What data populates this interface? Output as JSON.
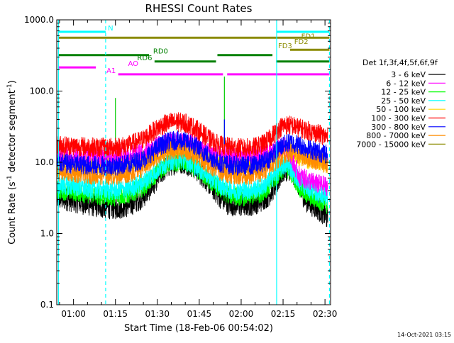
{
  "chart_data": {
    "type": "line",
    "title": "RHESSI Count Rates",
    "xlabel": "Start Time (18-Feb-06 00:54:02)",
    "ylabel_main": "Count Rate (s",
    "ylabel_sup1": "-1",
    "ylabel_mid": " detector segment",
    "ylabel_sup2": "-1",
    "ylabel_end": ")",
    "y_scale": "log",
    "ylim": [
      0.1,
      1000
    ],
    "xlim_minutes": [
      54,
      152
    ],
    "x_ticks": [
      {
        "minute": 60,
        "label": "01:00"
      },
      {
        "minute": 75,
        "label": "01:15"
      },
      {
        "minute": 90,
        "label": "01:30"
      },
      {
        "minute": 105,
        "label": "01:45"
      },
      {
        "minute": 120,
        "label": "02:00"
      },
      {
        "minute": 135,
        "label": "02:15"
      },
      {
        "minute": 150,
        "label": "02:30"
      }
    ],
    "y_ticks": [
      {
        "value": 0.1,
        "label": "0.1"
      },
      {
        "value": 1,
        "label": "1.0"
      },
      {
        "value": 10,
        "label": "10.0"
      },
      {
        "value": 100,
        "label": "100.0"
      },
      {
        "value": 1000,
        "label": "1000.0"
      }
    ],
    "legend_title": "Det 1f,3f,4f,5f,6f,9f",
    "series": [
      {
        "name": "3 - 6 keV",
        "color": "#000000",
        "x": [
          54,
          60,
          65,
          70,
          75,
          80,
          85,
          88,
          91,
          94,
          97,
          100,
          103,
          106,
          109,
          112,
          115,
          118,
          121,
          124,
          127,
          130,
          133,
          135,
          137,
          139,
          141,
          143,
          145,
          147,
          149,
          151
        ],
        "y": [
          3.2,
          2.9,
          2.6,
          2.4,
          2.3,
          2.5,
          3.3,
          4.6,
          6.8,
          9.0,
          10.2,
          10.0,
          8.6,
          6.6,
          4.8,
          3.4,
          2.7,
          2.5,
          2.5,
          2.6,
          2.9,
          3.5,
          5.2,
          7.6,
          8.2,
          6.8,
          4.2,
          3.0,
          2.6,
          2.3,
          2.0,
          1.6
        ]
      },
      {
        "name": "6 - 12 keV",
        "color": "#ff00ff",
        "x": [
          54,
          60,
          65,
          70,
          75,
          80,
          85,
          88,
          91,
          94,
          97,
          100,
          103,
          106,
          109,
          112,
          115,
          118,
          121,
          124,
          127,
          130,
          133,
          135,
          137,
          139,
          141,
          143,
          145,
          147,
          149,
          151
        ],
        "y": [
          13.0,
          12.7,
          12.4,
          12.2,
          12.2,
          12.6,
          13.7,
          15.2,
          17.6,
          19.3,
          19.8,
          19.5,
          18.0,
          15.8,
          13.8,
          12.6,
          12.2,
          12.0,
          12.0,
          12.0,
          12.3,
          13.2,
          15.2,
          17.0,
          15.0,
          9.0,
          6.3,
          5.8,
          5.4,
          5.0,
          4.8,
          4.6
        ]
      },
      {
        "name": "12 - 25 keV",
        "color": "#00ff00",
        "x": [
          54,
          60,
          65,
          70,
          75,
          80,
          85,
          88,
          91,
          94,
          97,
          100,
          103,
          106,
          109,
          112,
          115,
          118,
          121,
          124,
          127,
          130,
          133,
          135,
          137,
          139,
          141,
          143,
          145,
          147,
          149,
          151
        ],
        "y": [
          4.1,
          3.9,
          3.6,
          3.4,
          3.3,
          3.6,
          4.5,
          5.9,
          7.8,
          9.7,
          10.2,
          9.8,
          8.5,
          7.0,
          5.4,
          4.3,
          3.6,
          3.4,
          3.3,
          3.4,
          3.7,
          4.6,
          6.5,
          8.2,
          8.0,
          6.0,
          4.4,
          3.6,
          3.3,
          3.0,
          2.8,
          2.5
        ]
      },
      {
        "name": "25 - 50 keV",
        "color": "#00ffff",
        "x": [
          54,
          60,
          65,
          70,
          75,
          80,
          85,
          88,
          91,
          94,
          97,
          100,
          103,
          106,
          109,
          112,
          115,
          118,
          121,
          124,
          127,
          130,
          133,
          135,
          137,
          139,
          141,
          143,
          145,
          147,
          149,
          151
        ],
        "y": [
          4.8,
          4.6,
          4.3,
          4.1,
          4.0,
          4.3,
          5.2,
          6.6,
          8.5,
          10.4,
          11.0,
          10.6,
          9.2,
          7.7,
          6.0,
          4.9,
          4.3,
          4.0,
          4.0,
          4.1,
          4.4,
          5.4,
          7.4,
          9.0,
          9.0,
          7.0,
          5.4,
          4.6,
          4.2,
          3.8,
          3.5,
          3.2
        ]
      },
      {
        "name": "50 - 100 keV",
        "color": "#ffd700",
        "x": [
          54,
          60,
          65,
          70,
          75,
          80,
          85,
          88,
          91,
          94,
          97,
          100,
          103,
          106,
          109,
          112,
          115,
          118,
          121,
          124,
          127,
          130,
          133,
          135,
          137,
          139,
          141,
          143,
          145,
          147,
          149,
          151
        ],
        "y": [
          10.2,
          9.9,
          9.6,
          9.4,
          9.4,
          9.8,
          11.0,
          12.9,
          15.0,
          16.6,
          17.1,
          16.7,
          15.2,
          13.2,
          11.3,
          10.1,
          9.6,
          9.4,
          9.4,
          9.5,
          9.8,
          11.0,
          13.6,
          15.0,
          14.5,
          12.8,
          11.7,
          11.2,
          10.8,
          10.3,
          9.9,
          9.5
        ]
      },
      {
        "name": "100 - 300 keV",
        "color": "#ff0000",
        "x": [
          54,
          60,
          65,
          70,
          75,
          80,
          85,
          88,
          91,
          94,
          97,
          100,
          103,
          106,
          109,
          112,
          115,
          118,
          121,
          124,
          127,
          130,
          133,
          135,
          137,
          139,
          141,
          143,
          145,
          147,
          149,
          151
        ],
        "y": [
          17.5,
          17.0,
          16.5,
          16.1,
          16.2,
          17.5,
          21.0,
          26.0,
          32.0,
          36.0,
          37.0,
          35.5,
          31.0,
          25.5,
          20.5,
          17.5,
          16.5,
          16.0,
          15.8,
          16.0,
          17.2,
          21.0,
          28.0,
          33.0,
          33.5,
          32.0,
          30.0,
          28.5,
          27.0,
          25.5,
          24.0,
          22.5
        ]
      },
      {
        "name": "300 - 800 keV",
        "color": "#0000ff",
        "x": [
          54,
          60,
          65,
          70,
          75,
          80,
          85,
          88,
          91,
          94,
          97,
          100,
          103,
          106,
          109,
          112,
          115,
          118,
          121,
          124,
          127,
          130,
          133,
          135,
          137,
          139,
          141,
          143,
          145,
          147,
          149,
          151
        ],
        "y": [
          9.8,
          9.4,
          9.1,
          8.9,
          8.9,
          9.5,
          11.0,
          13.7,
          17.0,
          19.5,
          20.3,
          19.6,
          17.5,
          14.5,
          11.8,
          10.0,
          9.3,
          9.0,
          8.9,
          9.0,
          9.6,
          11.3,
          15.0,
          17.5,
          18.8,
          18.5,
          17.5,
          16.2,
          15.2,
          14.2,
          13.4,
          12.7
        ]
      },
      {
        "name": "800 - 7000 keV",
        "color": "#ff8c00",
        "x": [
          54,
          60,
          65,
          70,
          75,
          80,
          85,
          88,
          91,
          94,
          97,
          100,
          103,
          106,
          109,
          112,
          115,
          118,
          121,
          124,
          127,
          130,
          133,
          135,
          137,
          139,
          141,
          143,
          145,
          147,
          149,
          151
        ],
        "y": [
          7.4,
          7.1,
          6.8,
          6.6,
          6.6,
          7.1,
          8.5,
          10.5,
          12.8,
          14.6,
          15.2,
          14.6,
          13.0,
          10.9,
          9.0,
          7.6,
          7.0,
          6.7,
          6.6,
          6.7,
          7.1,
          8.4,
          11.0,
          13.0,
          13.8,
          13.4,
          12.6,
          11.9,
          11.3,
          10.6,
          10.0,
          9.4
        ]
      },
      {
        "name": "7000 - 15000 keV",
        "color": "#8b8b00",
        "x": [
          54,
          151
        ],
        "y": [
          null,
          null
        ]
      }
    ],
    "spikes": [
      {
        "minute": 75,
        "color": "#00cc00",
        "top": 80
      },
      {
        "minute": 75,
        "color": "#ff0000",
        "top": 22
      },
      {
        "minute": 114,
        "color": "#00cc00",
        "top": 160
      },
      {
        "minute": 114,
        "color": "#0000ff",
        "top": 40
      }
    ],
    "vlines": [
      {
        "minute": 54.6,
        "color": "#00ffff",
        "style": "solid"
      },
      {
        "minute": 71.5,
        "color": "#00ffff",
        "style": "dashed"
      },
      {
        "minute": 132.7,
        "color": "#00ffff",
        "style": "solid"
      },
      {
        "minute": 151.6,
        "color": "#00ffff",
        "style": "dashed"
      }
    ],
    "flag_bars": [
      {
        "label": "N",
        "color": "#00ffff",
        "y": 680,
        "segments": [
          [
            54.6,
            71.5
          ],
          [
            132.7,
            151.6
          ]
        ],
        "label_minute": 72.3,
        "label_side": "right"
      },
      {
        "label": "",
        "color": "#8b8b00",
        "y": 560,
        "segments": [
          [
            54.6,
            151.6
          ]
        ],
        "label_minute": null,
        "label_side": ""
      },
      {
        "label": "FD1",
        "color": "#8b8b00",
        "y": 520,
        "segments": [],
        "label_minute": 141.5,
        "label_side": "right"
      },
      {
        "label": "FD2",
        "color": "#8b8b00",
        "y": 440,
        "segments": [],
        "label_minute": 139,
        "label_side": "right"
      },
      {
        "label": "FD3",
        "color": "#8b8b00",
        "y": 380,
        "segments": [
          [
            137.5,
            151.6
          ]
        ],
        "label_minute": 133.2,
        "label_side": "right"
      },
      {
        "label": "RD0",
        "color": "#008000",
        "y": 320,
        "segments": [
          [
            54.6,
            87
          ],
          [
            111.5,
            131.2
          ]
        ],
        "label_minute": 88.5,
        "label_side": "right"
      },
      {
        "label": "RD6",
        "color": "#008000",
        "y": 260,
        "segments": [
          [
            89,
            111
          ],
          [
            132.5,
            151.6
          ]
        ],
        "label_minute": 82.8,
        "label_side": "right"
      },
      {
        "label": "AO",
        "color": "#ff00ff",
        "y": 215,
        "segments": [
          [
            54.6,
            68
          ]
        ],
        "label_minute": 79.5,
        "label_side": "right"
      },
      {
        "label": "A1",
        "color": "#ff00ff",
        "y": 172,
        "segments": [
          [
            76,
            113.5
          ],
          [
            115,
            151.6
          ]
        ],
        "label_minute": 71.8,
        "label_side": "right"
      }
    ],
    "grid": false,
    "legend_position": "right"
  },
  "footer": {
    "timestamp": "14-Oct-2021 03:15"
  }
}
